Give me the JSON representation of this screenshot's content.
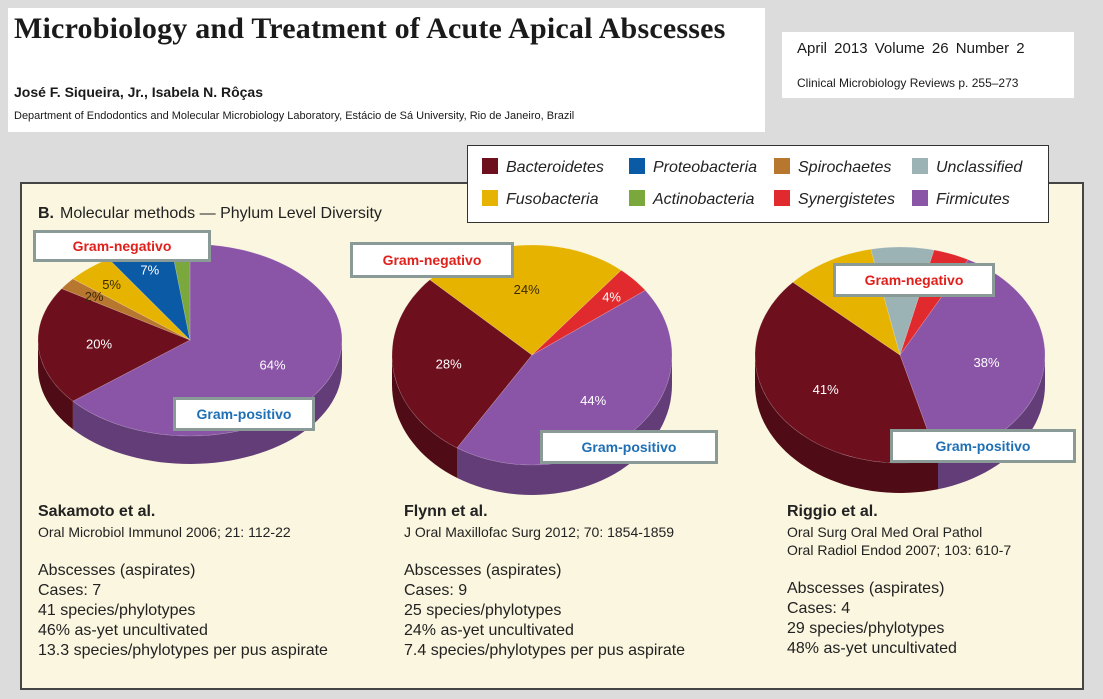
{
  "header": {
    "title": "Microbiology and Treatment of Acute Apical Abscesses",
    "authors": "José F. Siqueira, Jr., Isabela N. Rôças",
    "affiliation": "Department of Endodontics and Molecular Microbiology Laboratory, Estácio de Sá University, Rio de Janeiro, Brazil",
    "issue": "April 2013   Volume 26   Number 2",
    "journal": "Clinical Microbiology Reviews   p. 255–273"
  },
  "panel": {
    "letter": "B.",
    "title": "Molecular methods — Phylum Level Diversity"
  },
  "legend": [
    {
      "name": "Bacteroidetes",
      "color": "#6e0f1e"
    },
    {
      "name": "Proteobacteria",
      "color": "#0b5aa6"
    },
    {
      "name": "Spirochaetes",
      "color": "#b8772e"
    },
    {
      "name": "Unclassified",
      "color": "#9cb3b5"
    },
    {
      "name": "Fusobacteria",
      "color": "#e6b400"
    },
    {
      "name": "Actinobacteria",
      "color": "#7aa83c"
    },
    {
      "name": "Synergistetes",
      "color": "#e02a2e"
    },
    {
      "name": "Firmicutes",
      "color": "#8a55a6"
    }
  ],
  "annotations": {
    "gram_negative": "Gram-negativo",
    "gram_positive": "Gram-positivo"
  },
  "chart_data": [
    {
      "type": "pie",
      "slices": [
        {
          "name": "Firmicutes",
          "value": 64,
          "label": "64%",
          "color": "#8a55a6"
        },
        {
          "name": "Bacteroidetes",
          "value": 20,
          "label": "20%",
          "color": "#6e0f1e"
        },
        {
          "name": "Spirochaetes",
          "value": 2,
          "label": "2%",
          "color": "#b8772e"
        },
        {
          "name": "Fusobacteria",
          "value": 5,
          "label": "5%",
          "color": "#e6b400"
        },
        {
          "name": "Proteobacteria",
          "value": 7,
          "label": "7%",
          "color": "#0b5aa6"
        },
        {
          "name": "Actinobacteria",
          "value": 2,
          "label": "",
          "color": "#7aa83c"
        }
      ],
      "study": "Sakamoto et al.",
      "citation": [
        "Oral Microbiol Immunol 2006; 21: 112-22"
      ],
      "stats": [
        "Abscesses (aspirates)",
        "Cases: 7",
        "41 species/phylotypes",
        "46% as-yet uncultivated",
        "13.3 species/phylotypes per pus aspirate"
      ]
    },
    {
      "type": "pie",
      "slices": [
        {
          "name": "Firmicutes",
          "value": 44,
          "label": "44%",
          "color": "#8a55a6"
        },
        {
          "name": "Bacteroidetes",
          "value": 28,
          "label": "28%",
          "color": "#6e0f1e"
        },
        {
          "name": "Fusobacteria",
          "value": 24,
          "label": "24%",
          "color": "#e6b400"
        },
        {
          "name": "Synergistetes",
          "value": 4,
          "label": "4%",
          "color": "#e02a2e"
        }
      ],
      "study": "Flynn et al.",
      "citation": [
        "J Oral Maxillofac Surg 2012; 70: 1854-1859"
      ],
      "stats": [
        "Abscesses (aspirates)",
        "Cases: 9",
        "25 species/phylotypes",
        "24% as-yet uncultivated",
        "7.4 species/phylotypes per pus aspirate"
      ]
    },
    {
      "type": "pie",
      "slices": [
        {
          "name": "Firmicutes",
          "value": 38,
          "label": "38%",
          "color": "#8a55a6"
        },
        {
          "name": "Bacteroidetes",
          "value": 41,
          "label": "41%",
          "color": "#6e0f1e"
        },
        {
          "name": "Fusobacteria",
          "value": 10,
          "label": "",
          "color": "#e6b400"
        },
        {
          "name": "Unclassified",
          "value": 7,
          "label": "",
          "color": "#9cb3b5"
        },
        {
          "name": "Synergistetes",
          "value": 4,
          "label": "4%",
          "color": "#e02a2e"
        }
      ],
      "study": "Riggio et al.",
      "citation": [
        "Oral Surg Oral Med Oral Pathol",
        "Oral Radiol Endod 2007; 103: 610-7"
      ],
      "stats": [
        "Abscesses (aspirates)",
        "Cases: 4",
        "29 species/phylotypes",
        "48% as-yet uncultivated"
      ]
    }
  ]
}
